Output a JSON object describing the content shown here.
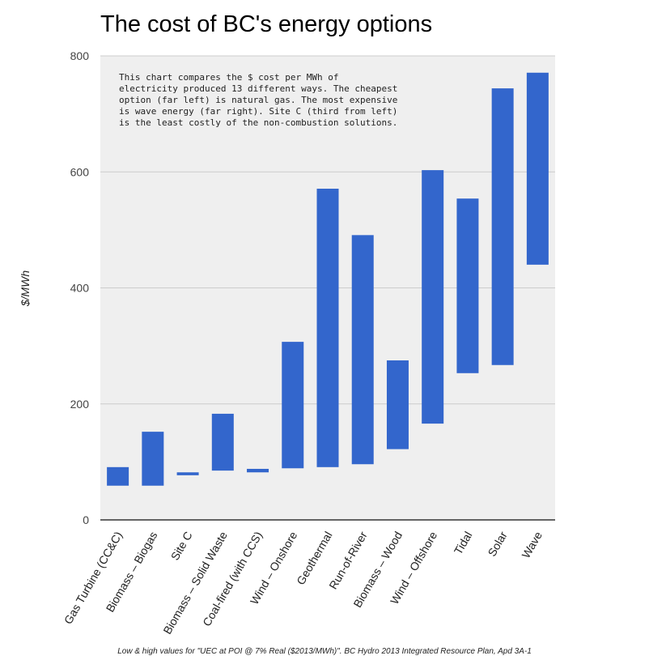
{
  "chart_data": {
    "type": "bar",
    "subtype": "floating-range",
    "title": "The cost of BC's energy options",
    "xlabel": "",
    "ylabel": "$/MWh",
    "ylim": [
      0,
      800
    ],
    "yticks": [
      0,
      200,
      400,
      600,
      800
    ],
    "grid": true,
    "bar_color": "#3366cc",
    "plot_background": "#efefef",
    "annotation": [
      "This chart compares the $ cost per MWh of",
      "electricity produced 13 different ways. The cheapest",
      "option (far left) is natural gas. The most expensive",
      "is wave energy (far right). Site C (third from left)",
      "is the least costly of the non-combustion solutions."
    ],
    "footnote": "Low & high values for \"UEC at POI @ 7% Real ($2013/MWh)\". BC Hydro 2013 Integrated Resource Plan, Apd 3A-1",
    "categories": [
      "Gas Turbine (CC&C)",
      "Biomass – Biogas",
      "Site C",
      "Biomass – Solid Waste",
      "Coal-fired (with CCS)",
      "Wind – Onshore",
      "Geothermal",
      "Run-of-River",
      "Biomass – Wood",
      "Wind – Offshore",
      "Tidal",
      "Solar",
      "Wave"
    ],
    "series": [
      {
        "name": "Low",
        "values": [
          59,
          59,
          77,
          85,
          82,
          89,
          91,
          96,
          122,
          166,
          253,
          267,
          440
        ]
      },
      {
        "name": "High",
        "values": [
          91,
          152,
          82,
          183,
          88,
          307,
          571,
          491,
          275,
          603,
          554,
          744,
          771
        ]
      }
    ]
  }
}
